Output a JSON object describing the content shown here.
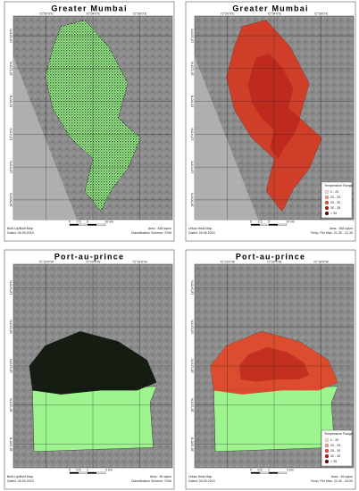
{
  "panels": [
    {
      "title": "Greater Mumbai",
      "style": "built-up",
      "base_color": "#9ef58f",
      "mark_color": "#101010",
      "shape": "mumbai",
      "top_labels": [
        "72°50'0\"E",
        "72°54'0\"E",
        "72°58'0\"E"
      ],
      "left_labels": [
        "19°16'0\"N",
        "19°12'0\"N",
        "19°8'0\"N",
        "19°4'0\"N",
        "19°0'0\"N",
        "18°56'0\"N"
      ],
      "scale": [
        "0",
        "2.5",
        "5",
        "10 km"
      ],
      "footer_left": [
        "Built-Up/Built Map",
        "Dated: 26.05.2019"
      ],
      "footer_right": [
        "Area : 458 sqkm",
        "Classification Scheme: SVM"
      ]
    },
    {
      "title": "Greater Mumbai",
      "style": "heat",
      "base_color": "#9ef58f",
      "mark_color": "#d42a1e",
      "shape": "mumbai",
      "top_labels": [
        "72°50'0\"E",
        "72°54'0\"E",
        "72°58'0\"E"
      ],
      "left_labels": [
        "19°16'0\"N",
        "19°12'0\"N",
        "19°8'0\"N",
        "19°4'0\"N",
        "19°0'0\"N",
        "18°56'0\"N"
      ],
      "scale": [
        "0",
        "2.5",
        "5",
        "10 km"
      ],
      "footer_left": [
        "Urban Heat Map",
        "Dated: 26.05.2019"
      ],
      "footer_right": [
        "Area : 458 sqkm",
        "Temp. Per Max: 21.26 - 41.35"
      ],
      "legend": {
        "title": "Temperature Range",
        "items": [
          {
            "label": "0 - 20",
            "color": "#fde0d0"
          },
          {
            "label": "20 - 25",
            "color": "#f5a58a"
          },
          {
            "label": "25 - 30",
            "color": "#e0503a"
          },
          {
            "label": "30 - 35",
            "color": "#b01a14"
          },
          {
            "label": "> 35",
            "color": "#5a0808"
          }
        ]
      }
    },
    {
      "title": "Port-au-prince",
      "style": "built-up",
      "base_color": "#9ef58f",
      "mark_color": "#050505",
      "shape": "port",
      "top_labels": [
        "72°22'0\"W",
        "72°20'0\"W",
        "72°18'0\"W"
      ],
      "left_labels": [
        "18°34'0\"N",
        "18°33'0\"N",
        "18°32'0\"N",
        "18°31'0\"N",
        "18°30'0\"N"
      ],
      "scale": [
        "0",
        "0.5",
        "1",
        "2 km"
      ],
      "footer_left": [
        "Built-Up/Built Map",
        "Dated: 26.05.2019"
      ],
      "footer_right": [
        "Area : 36 sqkm",
        "Classification Scheme: SVM"
      ]
    },
    {
      "title": "Port-au-prince",
      "style": "heat",
      "base_color": "#9ef58f",
      "mark_color": "#e23a24",
      "shape": "port",
      "top_labels": [
        "72°22'0\"W",
        "72°20'0\"W",
        "72°18'0\"W"
      ],
      "left_labels": [
        "18°34'0\"N",
        "18°33'0\"N",
        "18°32'0\"N",
        "18°31'0\"N",
        "18°30'0\"N"
      ],
      "scale": [
        "0",
        "0.5",
        "1",
        "2 km"
      ],
      "footer_left": [
        "Urban Heat Map",
        "Dated: 26.05.2019"
      ],
      "footer_right": [
        "Area : 36 sqkm",
        "Temp. Per Max: 22.40 - 34.90"
      ],
      "legend": {
        "title": "Temperature Range",
        "items": [
          {
            "label": "0 - 20",
            "color": "#fde0d0"
          },
          {
            "label": "20 - 25",
            "color": "#f5a58a"
          },
          {
            "label": "25 - 30",
            "color": "#e0503a"
          },
          {
            "label": "30 - 35",
            "color": "#b01a14"
          },
          {
            "label": "> 35",
            "color": "#5a0808"
          }
        ]
      }
    }
  ]
}
